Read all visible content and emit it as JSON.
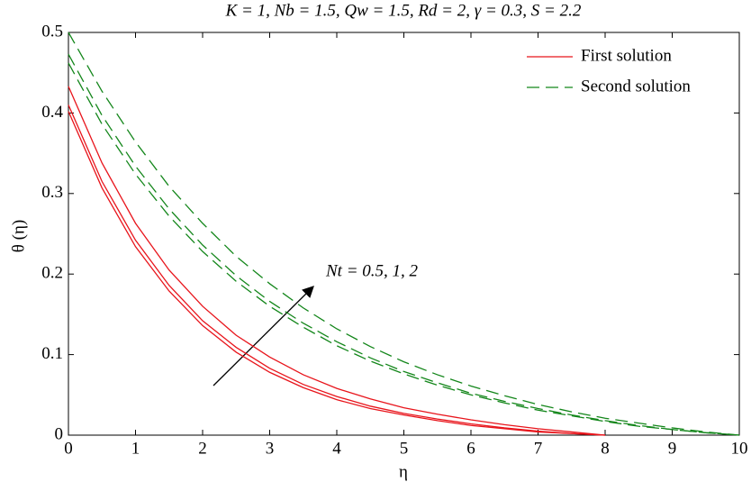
{
  "chart_data": {
    "type": "line",
    "title": "K = 1, Nb = 1.5, Qw = 1.5, Rd = 2, γ = 0.3, S = 2.2",
    "xlabel": "η",
    "ylabel": "θ (η)",
    "annotation": "Nt = 0.5, 1, 2",
    "x": [
      0,
      0.5,
      1,
      1.5,
      2,
      2.5,
      3,
      3.5,
      4,
      4.5,
      5,
      5.5,
      6,
      6.5,
      7,
      7.5,
      8,
      8.5,
      9,
      9.5,
      10
    ],
    "xlim": [
      0,
      10
    ],
    "xticks": [
      0,
      1,
      2,
      3,
      4,
      5,
      6,
      7,
      8,
      9,
      10
    ],
    "ylim": [
      0,
      0.5
    ],
    "yticks": [
      0,
      0.1,
      0.2,
      0.3,
      0.4,
      0.5
    ],
    "grid": false,
    "series": [
      {
        "name": "First solution",
        "color": "#e8141b",
        "linestyle": "solid",
        "values": [
          0.402,
          0.307,
          0.234,
          0.179,
          0.136,
          0.103,
          0.078,
          0.059,
          0.044,
          0.033,
          0.025,
          0.018,
          0.012,
          0.008,
          0.004,
          0.002,
          0,
          null,
          null,
          null,
          null
        ]
      },
      {
        "name": "First solution",
        "color": "#e8141b",
        "linestyle": "solid",
        "values": [
          0.41,
          0.315,
          0.242,
          0.186,
          0.142,
          0.109,
          0.083,
          0.063,
          0.048,
          0.036,
          0.027,
          0.02,
          0.014,
          0.009,
          0.005,
          0.002,
          0,
          null,
          null,
          null,
          null
        ]
      },
      {
        "name": "First solution",
        "color": "#e8141b",
        "linestyle": "solid",
        "values": [
          0.433,
          0.338,
          0.263,
          0.205,
          0.16,
          0.124,
          0.097,
          0.075,
          0.058,
          0.045,
          0.034,
          0.026,
          0.019,
          0.013,
          0.008,
          0.004,
          0,
          null,
          null,
          null,
          null
        ]
      },
      {
        "name": "Second solution",
        "color": "#13861a",
        "linestyle": "dashed",
        "values": [
          0.462,
          0.386,
          0.324,
          0.272,
          0.228,
          0.191,
          0.16,
          0.134,
          0.111,
          0.092,
          0.076,
          0.062,
          0.05,
          0.04,
          0.031,
          0.024,
          0.017,
          0.011,
          0.007,
          0.003,
          0
        ]
      },
      {
        "name": "Second solution",
        "color": "#13861a",
        "linestyle": "dashed",
        "values": [
          0.473,
          0.397,
          0.334,
          0.281,
          0.236,
          0.198,
          0.166,
          0.139,
          0.116,
          0.096,
          0.079,
          0.065,
          0.052,
          0.042,
          0.033,
          0.025,
          0.018,
          0.012,
          0.007,
          0.003,
          0
        ]
      },
      {
        "name": "Second solution",
        "color": "#13861a",
        "linestyle": "dashed",
        "values": [
          0.5,
          0.427,
          0.364,
          0.309,
          0.263,
          0.222,
          0.188,
          0.158,
          0.132,
          0.11,
          0.091,
          0.075,
          0.061,
          0.049,
          0.038,
          0.029,
          0.021,
          0.015,
          0.009,
          0.004,
          0
        ]
      }
    ]
  }
}
